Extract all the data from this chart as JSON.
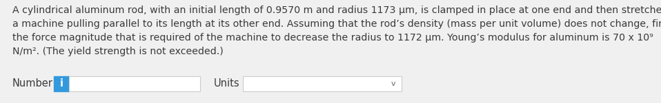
{
  "background_color": "#f0f0f0",
  "text_color": "#3a3a3a",
  "paragraph_lines": [
    "A cylindrical aluminum rod, with an initial length of 0.9570 m and radius 1173 μm, is clamped in place at one end and then stretched by",
    "a machine pulling parallel to its length at its other end. Assuming that the rod’s density (mass per unit volume) does not change, find",
    "the force magnitude that is required of the machine to decrease the radius to 1172 μm. Young’s modulus for aluminum is 70 x 10⁹",
    "N/m². (The yield strength is not exceeded.)"
  ],
  "number_label": "Number",
  "units_label": "Units",
  "info_button_color": "#3399dd",
  "info_button_text": "i",
  "input_box_facecolor": "#ffffff",
  "input_border_color": "#cccccc",
  "dropdown_border_color": "#cccccc",
  "chevron": "v",
  "font_size_para": 10.2,
  "font_size_ui": 10.5
}
